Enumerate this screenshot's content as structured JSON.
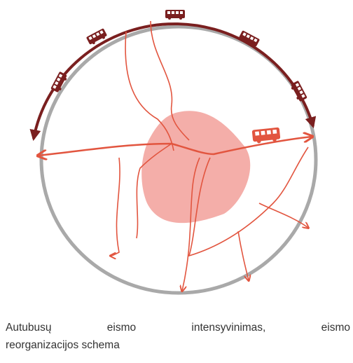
{
  "caption": {
    "lines": [
      "Autubusų eismo intensyvinimas, eismo",
      "reorganizacijos schema"
    ]
  }
}
